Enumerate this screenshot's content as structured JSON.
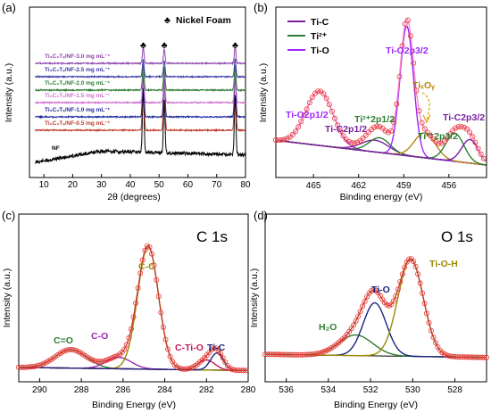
{
  "chart_data": [
    {
      "id": "a",
      "type": "line",
      "panel_label": "(a)",
      "xlabel": "2θ (degrees)",
      "ylabel": "Intensity (a.u.)",
      "xlim": [
        5,
        80
      ],
      "xticks": [
        10,
        20,
        30,
        40,
        50,
        60,
        70,
        80
      ],
      "legend_marker": "♣",
      "legend_text": "Nickel Foam",
      "peaks": [
        44.5,
        51.8,
        76.4
      ],
      "series": [
        {
          "name": "NF",
          "color": "#000000",
          "offset": 0
        },
        {
          "name": "Ti₃C₂Tₓ/NF-0.5 mg mL⁻¹",
          "color": "#c0392b",
          "offset": 1
        },
        {
          "name": "Ti₃C₂Tₓ/NF-1.0 mg mL⁻¹",
          "color": "#1f2a9e",
          "offset": 2
        },
        {
          "name": "Ti₃C₂Tₓ/NF-1.5 mg mL⁻¹",
          "color": "#d070d0",
          "offset": 3
        },
        {
          "name": "Ti₃C₂Tₓ/NF-2.0 mg mL⁻¹",
          "color": "#2e7d32",
          "offset": 4
        },
        {
          "name": "Ti₃C₂Tₓ/NF-2.5 mg mL⁻¹",
          "color": "#3a3aa8",
          "offset": 5
        },
        {
          "name": "Ti₃C₂Tₓ/NF-3.0 mg mL⁻¹",
          "color": "#8e44ad",
          "offset": 6
        }
      ]
    },
    {
      "id": "b",
      "type": "line",
      "panel_label": "(b)",
      "xlabel": "Binding energy (eV)",
      "ylabel": "Intensity (a.u.)",
      "xlim": [
        467.5,
        453.5
      ],
      "xticks": [
        465,
        462,
        459,
        456
      ],
      "legend": [
        {
          "name": "Ti-C",
          "color": "#7b1fa2"
        },
        {
          "name": "Ti²⁺",
          "color": "#2e7d32"
        },
        {
          "name": "Ti-O",
          "color": "#9c27ff"
        }
      ],
      "peaks": [
        {
          "label": "Ti-O2p1/2",
          "center": 464.6,
          "height": 0.37,
          "color": "#9c27ff"
        },
        {
          "label": "Ti-C2p1/2",
          "center": 460.9,
          "height": 0.08,
          "color": "#7b1fa2"
        },
        {
          "label": "Ti²⁺2p1/2",
          "center": 460.6,
          "height": 0.1,
          "color": "#2e7d32"
        },
        {
          "label": "Ti-O2p3/2",
          "center": 458.8,
          "height": 0.88,
          "color": "#9c27ff"
        },
        {
          "label": "TiₓOᵧ",
          "center": 457.6,
          "height": 0.17,
          "color": "#b8860b"
        },
        {
          "label": "Ti²⁺2p3/2",
          "center": 455.6,
          "height": 0.19,
          "color": "#2e7d32"
        },
        {
          "label": "Ti-C2p3/2",
          "center": 454.6,
          "height": 0.16,
          "color": "#7b1fa2"
        }
      ]
    },
    {
      "id": "c",
      "type": "line",
      "panel_label": "(c)",
      "title": "C 1s",
      "xlabel": "Binding Energy (eV)",
      "ylabel": "Intensity (a.u.)",
      "xlim": [
        291,
        280
      ],
      "xticks": [
        290,
        288,
        286,
        284,
        282,
        280
      ],
      "peaks": [
        {
          "label": "C=O",
          "center": 288.5,
          "height": 0.13,
          "color": "#2e7d32"
        },
        {
          "label": "C-O",
          "center": 286.2,
          "height": 0.08,
          "color": "#9c27b0"
        },
        {
          "label": "C-C",
          "center": 284.8,
          "height": 0.86,
          "color": "#9a8a00"
        },
        {
          "label": "C-Ti-O",
          "center": 282.0,
          "height": 0.07,
          "color": "#c2185b"
        },
        {
          "label": "Ti-C",
          "center": 281.5,
          "height": 0.12,
          "color": "#1a237e"
        }
      ]
    },
    {
      "id": "d",
      "type": "line",
      "panel_label": "(d)",
      "title": "O 1s",
      "xlabel": "Binding Energy (eV)",
      "ylabel": "Intensity (a.u.)",
      "xlim": [
        537,
        526.5
      ],
      "xticks": [
        536,
        534,
        532,
        530,
        528
      ],
      "peaks": [
        {
          "label": "H₂O",
          "center": 532.7,
          "height": 0.14,
          "color": "#2e7d32"
        },
        {
          "label": "Ti-O",
          "center": 531.8,
          "height": 0.36,
          "color": "#1a237e"
        },
        {
          "label": "Ti-O-H",
          "center": 530.1,
          "height": 0.66,
          "color": "#9a8a00"
        }
      ]
    }
  ]
}
